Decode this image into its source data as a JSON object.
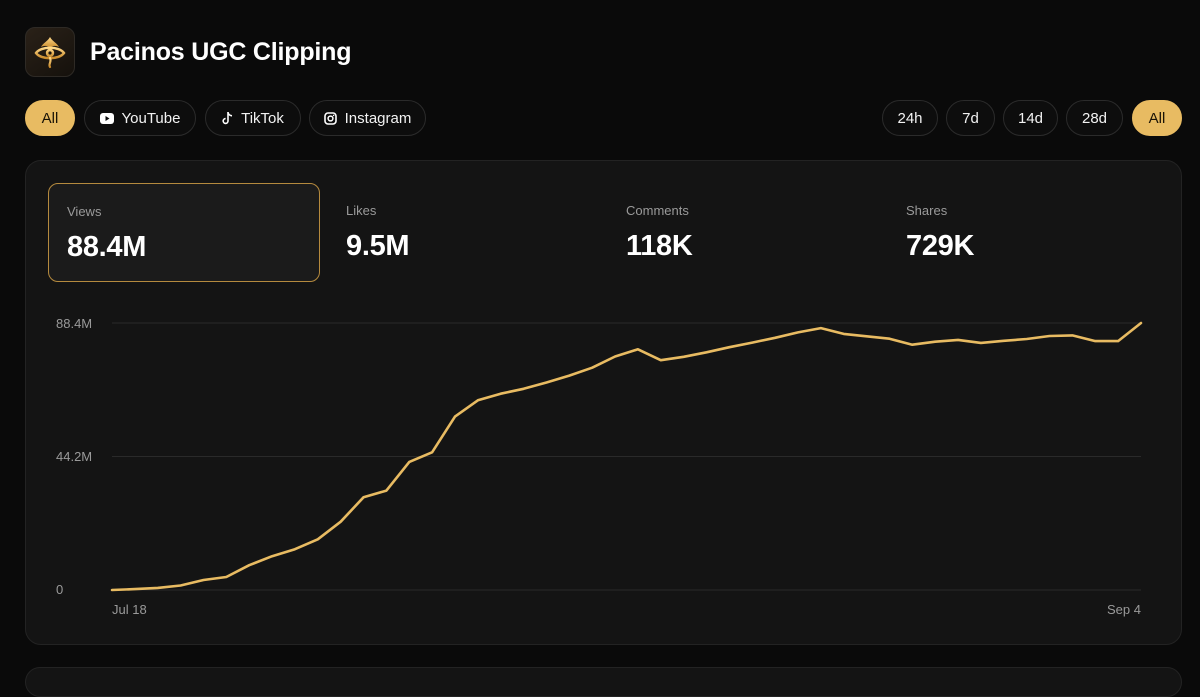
{
  "app": {
    "title": "Pacinos UGC Clipping",
    "logo_icon": "eye-flame-logo"
  },
  "platform_filters": [
    {
      "label": "All",
      "icon": "",
      "active": true
    },
    {
      "label": "YouTube",
      "icon": "youtube-icon",
      "active": false
    },
    {
      "label": "TikTok",
      "icon": "tiktok-icon",
      "active": false
    },
    {
      "label": "Instagram",
      "icon": "instagram-icon",
      "active": false
    }
  ],
  "range_filters": [
    {
      "label": "24h",
      "active": false
    },
    {
      "label": "7d",
      "active": false
    },
    {
      "label": "14d",
      "active": false
    },
    {
      "label": "28d",
      "active": false
    },
    {
      "label": "All",
      "active": true
    }
  ],
  "metrics": [
    {
      "label": "Views",
      "value": "88.4M",
      "selected": true
    },
    {
      "label": "Likes",
      "value": "9.5M",
      "selected": false
    },
    {
      "label": "Comments",
      "value": "118K",
      "selected": false
    },
    {
      "label": "Shares",
      "value": "729K",
      "selected": false
    }
  ],
  "colors": {
    "accent": "#e8bb62",
    "background": "#0a0a0a",
    "card": "#141414"
  },
  "chart_data": {
    "type": "line",
    "ylim": [
      0,
      88.4
    ],
    "y_tick_labels": [
      "0",
      "44.2M",
      "88.4M"
    ],
    "x_tick_labels": [
      "Jul 18",
      "Sep 4"
    ],
    "grid": true,
    "series": [
      {
        "values": [
          0.0,
          0.3,
          0.7,
          1.5,
          3.3,
          4.3,
          8.2,
          11.2,
          13.5,
          16.8,
          22.6,
          30.7,
          32.9,
          42.4,
          45.6,
          57.4,
          62.8,
          65.0,
          66.6,
          68.7,
          71.0,
          73.6,
          77.3,
          79.7,
          76.1,
          77.2,
          78.7,
          80.4,
          81.9,
          83.5,
          85.3,
          86.7,
          84.8,
          84.0,
          83.2,
          81.2,
          82.2,
          82.8,
          81.8,
          82.5,
          83.1,
          84.1,
          84.3,
          82.4,
          82.4,
          88.4
        ]
      }
    ]
  }
}
